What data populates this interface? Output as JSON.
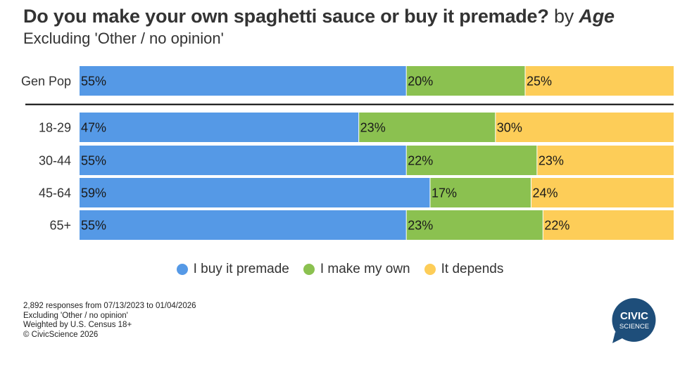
{
  "header": {
    "title_main": "Do you make your own spaghetti sauce or buy it premade?",
    "title_by": "by",
    "title_dimension": "Age",
    "subtitle": "Excluding 'Other / no opinion'"
  },
  "colors": {
    "buy": "#5599e6",
    "make": "#8bc150",
    "depends": "#fdcd58"
  },
  "chart_data": {
    "type": "bar",
    "orientation": "horizontal-stacked-100",
    "categories": [
      "Gen Pop",
      "18-29",
      "30-44",
      "45-64",
      "65+"
    ],
    "series": [
      {
        "name": "I buy it premade",
        "values": [
          55,
          47,
          55,
          59,
          55
        ]
      },
      {
        "name": "I make my own",
        "values": [
          20,
          23,
          22,
          17,
          23
        ]
      },
      {
        "name": "It depends",
        "values": [
          25,
          30,
          23,
          24,
          22
        ]
      }
    ],
    "value_suffix": "%",
    "xlim": [
      0,
      100
    ],
    "title": "Do you make your own spaghetti sauce or buy it premade? by Age",
    "legend_position": "bottom"
  },
  "legend": [
    {
      "label": "I buy it premade",
      "color_key": "buy"
    },
    {
      "label": "I make my own",
      "color_key": "make"
    },
    {
      "label": "It depends",
      "color_key": "depends"
    }
  ],
  "footer": {
    "line1": "2,892 responses from 07/13/2023 to 01/04/2026",
    "line2": "Excluding 'Other / no opinion'",
    "line3": "Weighted by U.S. Census 18+",
    "line4": "© CivicScience 2026"
  },
  "logo": {
    "word1": "CIVIC",
    "word2": "SCIENCE"
  }
}
